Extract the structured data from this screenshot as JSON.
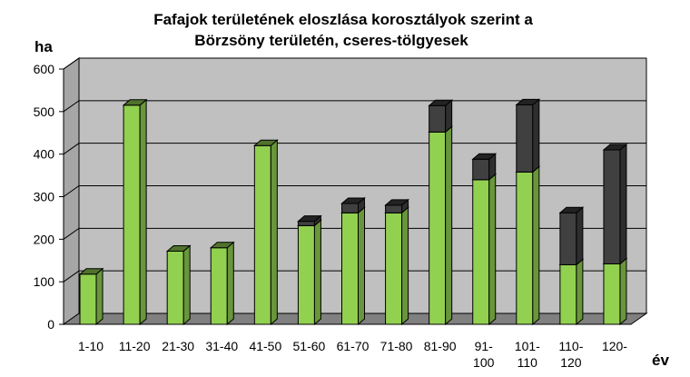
{
  "chart_data": {
    "type": "bar",
    "stacked": true,
    "title_lines": [
      "Fafajok területének eloszlása korosztályok szerint a",
      "Börzsöny területén, cseres-tölgyesek"
    ],
    "ylabel": "ha",
    "xlabel": "év",
    "ylim": [
      0,
      600
    ],
    "yticks": [
      "0",
      "100",
      "200",
      "300",
      "400",
      "500",
      "600"
    ],
    "categories": [
      [
        "1-10"
      ],
      [
        "11-20"
      ],
      [
        "21-30"
      ],
      [
        "31-40"
      ],
      [
        "41-50"
      ],
      [
        "51-60"
      ],
      [
        "61-70"
      ],
      [
        "71-80"
      ],
      [
        "81-90"
      ],
      [
        "91-",
        "100"
      ],
      [
        "101-",
        "110"
      ],
      [
        "110-",
        "120"
      ],
      [
        "120-"
      ]
    ],
    "series": [
      {
        "color": "#92d050",
        "values": [
          118,
          515,
          172,
          180,
          420,
          232,
          262,
          262,
          452,
          340,
          358,
          140,
          142
        ]
      },
      {
        "color": "#404040",
        "values": [
          0,
          0,
          0,
          0,
          0,
          10,
          22,
          18,
          62,
          48,
          158,
          122,
          268
        ]
      }
    ],
    "grid": true,
    "wall_color": "#c0c0c0",
    "floor_color": "#808080"
  }
}
